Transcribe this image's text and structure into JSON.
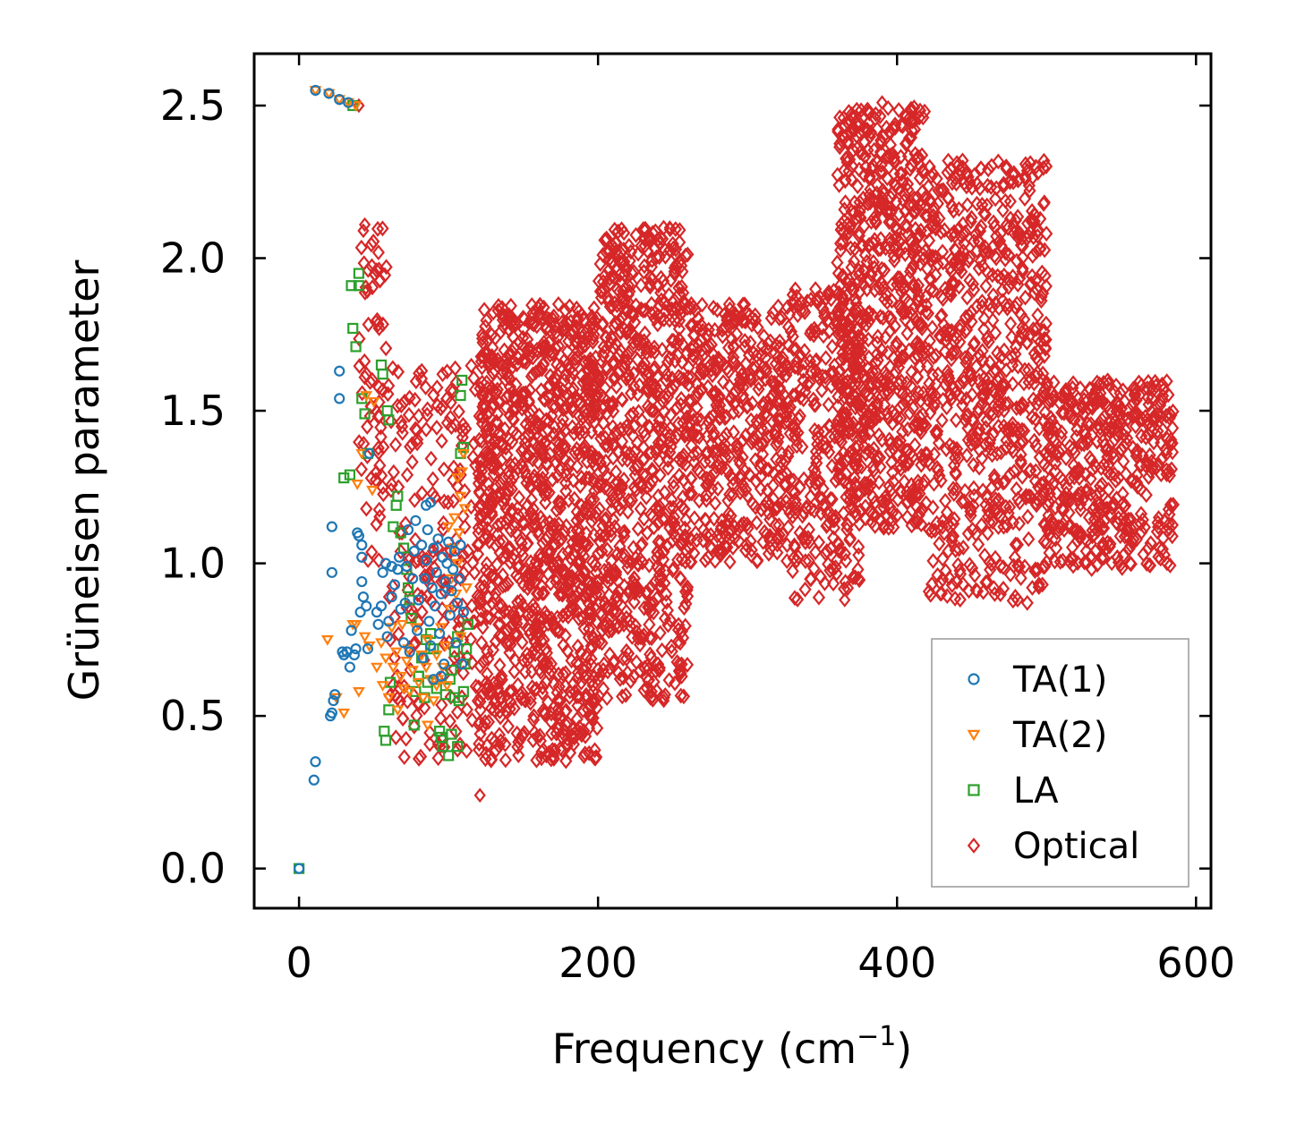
{
  "chart_data": {
    "type": "scatter",
    "title": "",
    "xlabel": "Frequency (cm",
    "xlabel_superscript": "−1",
    "xlabel_suffix": ")",
    "ylabel": "Grüneisen parameter",
    "xlim": [
      -30,
      610
    ],
    "ylim": [
      -0.13,
      2.67
    ],
    "x_ticks": [
      0,
      200,
      400,
      600
    ],
    "x_tick_labels": [
      "0",
      "200",
      "400",
      "600"
    ],
    "y_ticks": [
      0.0,
      0.5,
      1.0,
      1.5,
      2.0,
      2.5
    ],
    "y_tick_labels": [
      "0.0",
      "0.5",
      "1.0",
      "1.5",
      "2.0",
      "2.5"
    ],
    "grid": false,
    "legend_position": "lower-right",
    "series": [
      {
        "name": "TA(1)",
        "marker": "circle",
        "color": "#1f77b4",
        "points": [
          [
            0,
            0.0
          ],
          [
            10,
            0.29
          ],
          [
            11,
            0.35
          ],
          [
            21,
            0.5
          ],
          [
            22,
            0.51
          ],
          [
            23,
            0.55
          ],
          [
            24,
            0.57
          ],
          [
            22,
            0.97
          ],
          [
            22,
            1.12
          ],
          [
            27,
            1.54
          ],
          [
            27,
            1.63
          ],
          [
            29,
            0.71
          ],
          [
            32,
            0.71
          ],
          [
            34,
            0.66
          ],
          [
            35,
            0.78
          ],
          [
            37,
            0.7
          ],
          [
            38,
            0.72
          ],
          [
            39,
            1.1
          ],
          [
            40,
            1.09
          ],
          [
            41,
            0.84
          ],
          [
            42,
            1.02
          ],
          [
            42,
            0.94
          ],
          [
            43,
            0.89
          ],
          [
            45,
            0.86
          ],
          [
            46,
            0.72
          ],
          [
            52,
            0.84
          ],
          [
            53,
            0.8
          ],
          [
            55,
            0.86
          ],
          [
            56,
            0.97
          ],
          [
            58,
            1.0
          ],
          [
            59,
            0.76
          ],
          [
            60,
            0.81
          ],
          [
            62,
            0.89
          ],
          [
            64,
            0.93
          ],
          [
            66,
            0.98
          ],
          [
            67,
            1.02
          ],
          [
            68,
            0.85
          ],
          [
            70,
            0.74
          ],
          [
            71,
            0.87
          ],
          [
            72,
            0.99
          ],
          [
            73,
            1.11
          ],
          [
            74,
            0.71
          ],
          [
            76,
            0.95
          ],
          [
            77,
            1.04
          ],
          [
            78,
            1.14
          ],
          [
            79,
            0.78
          ],
          [
            80,
            0.88
          ],
          [
            82,
            1.06
          ],
          [
            83,
            0.69
          ],
          [
            84,
            0.95
          ],
          [
            85,
            1.01
          ],
          [
            86,
            1.11
          ],
          [
            87,
            0.81
          ],
          [
            88,
            0.73
          ],
          [
            89,
            0.92
          ],
          [
            90,
            1.05
          ],
          [
            91,
            0.86
          ],
          [
            92,
            0.97
          ],
          [
            93,
            1.08
          ],
          [
            94,
            0.77
          ],
          [
            95,
            0.9
          ],
          [
            96,
            1.02
          ],
          [
            97,
            0.67
          ],
          [
            98,
            0.94
          ],
          [
            99,
            1.0
          ],
          [
            100,
            1.07
          ],
          [
            101,
            0.83
          ],
          [
            102,
            0.91
          ],
          [
            103,
            0.98
          ],
          [
            104,
            1.04
          ],
          [
            105,
            0.74
          ],
          [
            106,
            0.87
          ],
          [
            107,
            0.95
          ],
          [
            108,
            1.06
          ],
          [
            109,
            0.67
          ],
          [
            110,
            0.84
          ],
          [
            11,
            2.55
          ],
          [
            20,
            2.54
          ],
          [
            27,
            2.52
          ],
          [
            33,
            2.51
          ],
          [
            47,
            1.36
          ],
          [
            85,
            1.19
          ],
          [
            88,
            1.2
          ],
          [
            30,
            0.7
          ],
          [
            42,
            1.06
          ],
          [
            62,
            0.99
          ],
          [
            90,
            0.62
          ],
          [
            95,
            0.63
          ]
        ]
      },
      {
        "name": "TA(2)",
        "marker": "triangle-down",
        "color": "#ff7f0e",
        "points": [
          [
            19,
            0.75
          ],
          [
            25,
            0.56
          ],
          [
            30,
            0.51
          ],
          [
            36,
            0.8
          ],
          [
            38,
            0.8
          ],
          [
            39,
            1.26
          ],
          [
            40,
            0.58
          ],
          [
            44,
            0.76
          ],
          [
            47,
            0.73
          ],
          [
            49,
            1.24
          ],
          [
            50,
            1.53
          ],
          [
            52,
            0.66
          ],
          [
            55,
            0.74
          ],
          [
            56,
            0.6
          ],
          [
            58,
            0.69
          ],
          [
            60,
            0.56
          ],
          [
            62,
            0.79
          ],
          [
            63,
            0.66
          ],
          [
            65,
            0.71
          ],
          [
            66,
            0.52
          ],
          [
            68,
            0.63
          ],
          [
            69,
            0.8
          ],
          [
            70,
            0.59
          ],
          [
            72,
            0.68
          ],
          [
            73,
            0.72
          ],
          [
            74,
            0.58
          ],
          [
            76,
            0.65
          ],
          [
            78,
            0.79
          ],
          [
            80,
            0.61
          ],
          [
            82,
            0.7
          ],
          [
            83,
            0.56
          ],
          [
            85,
            0.66
          ],
          [
            86,
            0.75
          ],
          [
            88,
            0.62
          ],
          [
            90,
            0.55
          ],
          [
            92,
            0.7
          ],
          [
            93,
            0.62
          ],
          [
            95,
            0.79
          ],
          [
            96,
            0.66
          ],
          [
            98,
            0.73
          ],
          [
            99,
            0.6
          ],
          [
            100,
            1.12
          ],
          [
            101,
            0.85
          ],
          [
            102,
            0.95
          ],
          [
            103,
            1.05
          ],
          [
            104,
            1.15
          ],
          [
            105,
            0.9
          ],
          [
            106,
            1.0
          ],
          [
            107,
            1.1
          ],
          [
            108,
            1.22
          ],
          [
            109,
            1.3
          ],
          [
            110,
            1.36
          ],
          [
            111,
            1.18
          ],
          [
            112,
            0.92
          ],
          [
            11,
            2.55
          ],
          [
            20,
            2.54
          ],
          [
            27,
            2.52
          ],
          [
            33,
            2.51
          ],
          [
            38,
            2.5
          ],
          [
            42,
            1.36
          ],
          [
            45,
            1.55
          ],
          [
            86,
            0.47
          ],
          [
            92,
            0.6
          ],
          [
            106,
            1.28
          ],
          [
            108,
            0.76
          ]
        ]
      },
      {
        "name": "LA",
        "marker": "square",
        "color": "#2ca02c",
        "points": [
          [
            0,
            0.0
          ],
          [
            30,
            1.28
          ],
          [
            34,
            1.29
          ],
          [
            35,
            1.91
          ],
          [
            36,
            1.77
          ],
          [
            38,
            1.71
          ],
          [
            40,
            1.95
          ],
          [
            40,
            1.91
          ],
          [
            42,
            1.54
          ],
          [
            44,
            1.49
          ],
          [
            46,
            1.36
          ],
          [
            55,
            1.65
          ],
          [
            56,
            1.62
          ],
          [
            57,
            0.45
          ],
          [
            58,
            0.42
          ],
          [
            59,
            1.5
          ],
          [
            60,
            1.47
          ],
          [
            60,
            0.52
          ],
          [
            61,
            0.61
          ],
          [
            63,
            1.12
          ],
          [
            65,
            1.19
          ],
          [
            66,
            1.22
          ],
          [
            68,
            1.1
          ],
          [
            70,
            1.05
          ],
          [
            72,
            0.98
          ],
          [
            73,
            0.92
          ],
          [
            74,
            0.88
          ],
          [
            75,
            0.82
          ],
          [
            77,
            0.47
          ],
          [
            78,
            0.58
          ],
          [
            80,
            0.63
          ],
          [
            82,
            0.69
          ],
          [
            84,
            0.56
          ],
          [
            85,
            0.75
          ],
          [
            86,
            0.61
          ],
          [
            88,
            0.77
          ],
          [
            90,
            0.72
          ],
          [
            92,
            0.59
          ],
          [
            94,
            0.45
          ],
          [
            95,
            0.43
          ],
          [
            96,
            0.4
          ],
          [
            98,
            0.57
          ],
          [
            100,
            0.37
          ],
          [
            101,
            0.62
          ],
          [
            102,
            0.65
          ],
          [
            104,
            0.71
          ],
          [
            106,
            0.76
          ],
          [
            107,
            0.55
          ],
          [
            108,
            1.55
          ],
          [
            109,
            1.6
          ],
          [
            110,
            0.58
          ],
          [
            111,
            0.67
          ],
          [
            112,
            0.72
          ],
          [
            113,
            0.8
          ],
          [
            36,
            2.5
          ],
          [
            80,
            0.63
          ],
          [
            88,
            0.72
          ],
          [
            102,
            0.44
          ],
          [
            106,
            0.4
          ],
          [
            108,
            1.36
          ],
          [
            110,
            1.38
          ],
          [
            104,
            0.56
          ]
        ]
      },
      {
        "name": "Optical",
        "marker": "diamond",
        "color": "#d62728",
        "clusters": [
          {
            "x": [
              40,
              60
            ],
            "y": [
              1.0,
              2.1
            ],
            "n": 70
          },
          {
            "x": [
              60,
              122
            ],
            "y": [
              0.35,
              1.65
            ],
            "n": 220
          },
          {
            "x": [
              120,
              200
            ],
            "y": [
              0.35,
              1.85
            ],
            "n": 1100
          },
          {
            "x": [
              200,
              260
            ],
            "y": [
              0.55,
              2.1
            ],
            "n": 700
          },
          {
            "x": [
              260,
              330
            ],
            "y": [
              1.0,
              1.85
            ],
            "n": 450
          },
          {
            "x": [
              330,
              375
            ],
            "y": [
              0.88,
              1.9
            ],
            "n": 260
          },
          {
            "x": [
              360,
              420
            ],
            "y": [
              1.1,
              2.5
            ],
            "n": 700
          },
          {
            "x": [
              420,
              500
            ],
            "y": [
              0.87,
              2.32
            ],
            "n": 700
          },
          {
            "x": [
              500,
              585
            ],
            "y": [
              0.98,
              1.6
            ],
            "n": 450
          }
        ],
        "points": [
          [
            40,
            2.5
          ],
          [
            43,
            2.09
          ],
          [
            44,
            2.11
          ],
          [
            248,
            2.1
          ],
          [
            390,
            2.51
          ],
          [
            121,
            0.24
          ],
          [
            244,
            0.55
          ],
          [
            245,
            0.57
          ],
          [
            330,
            1.88
          ],
          [
            340,
            1.86
          ],
          [
            365,
            0.88
          ],
          [
            582,
            1.13
          ],
          [
            575,
            1.15
          ],
          [
            258,
            1.85
          ],
          [
            355,
            1.45
          ],
          [
            300,
            1.22
          ],
          [
            280,
            1.37
          ],
          [
            196,
            1.8
          ]
        ]
      }
    ]
  }
}
